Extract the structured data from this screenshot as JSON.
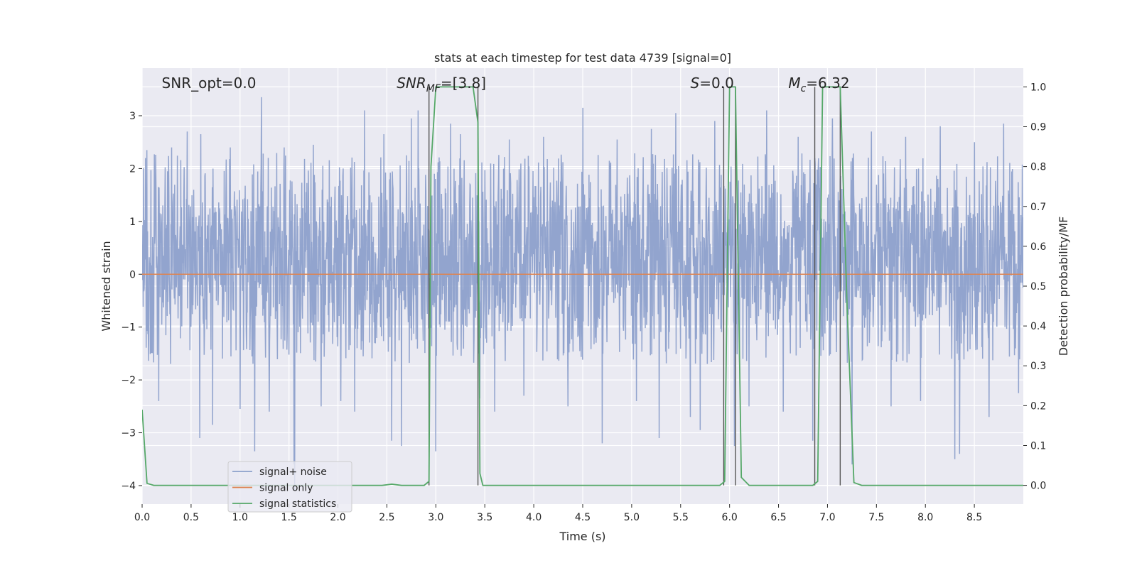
{
  "chart_data": {
    "type": "line",
    "title": "stats at each timestep for test data 4739 [signal=0]",
    "xlabel": "Time (s)",
    "ylabel": "Whitened strain",
    "y2label": "Detection probability/MF",
    "xlim": [
      0,
      9.0
    ],
    "ylim": [
      -4.35,
      3.9
    ],
    "y2lim": [
      -0.047,
      1.047
    ],
    "x_ticks": [
      0.0,
      0.5,
      1.0,
      1.5,
      2.0,
      2.5,
      3.0,
      3.5,
      4.0,
      4.5,
      5.0,
      5.5,
      6.0,
      6.5,
      7.0,
      7.5,
      8.0,
      8.5
    ],
    "y_ticks": [
      -4,
      -3,
      -2,
      -1,
      0,
      1,
      2,
      3
    ],
    "y2_ticks": [
      0.0,
      0.1,
      0.2,
      0.3,
      0.4,
      0.5,
      0.6,
      0.7,
      0.8,
      0.9,
      1.0
    ],
    "grid": true,
    "legend_position": "lower-left",
    "annotations": [
      {
        "id": "snr-opt",
        "text": "SNR_opt=0.0",
        "x": 0.2
      },
      {
        "id": "snr-mf",
        "text": "SNR_MF=[3.8]",
        "x": 2.6
      },
      {
        "id": "s-value",
        "text": "S=0.0",
        "x": 5.6
      },
      {
        "id": "mc-value",
        "text": "M_c=6.32",
        "x": 6.6
      }
    ],
    "vertical_markers": [
      2.93,
      3.43,
      5.94,
      6.06,
      6.87,
      7.13
    ],
    "series": [
      {
        "name": "signal+ noise",
        "color": "#8da0cb",
        "type": "noise",
        "typical_range": [
          -1.7,
          2.3
        ],
        "peaks": [
          {
            "x": 0.05,
            "y": 2.35
          },
          {
            "x": 0.17,
            "y": -2.4
          },
          {
            "x": 0.3,
            "y": 2.4
          },
          {
            "x": 0.46,
            "y": 2.7
          },
          {
            "x": 0.6,
            "y": -2.55
          },
          {
            "x": 0.6,
            "y": 2.65
          },
          {
            "x": 0.59,
            "y": -3.1
          },
          {
            "x": 0.72,
            "y": -2.85
          },
          {
            "x": 0.9,
            "y": 2.4
          },
          {
            "x": 1.0,
            "y": -2.55
          },
          {
            "x": 1.15,
            "y": 3.15
          },
          {
            "x": 1.22,
            "y": 3.35
          },
          {
            "x": 1.15,
            "y": -3.35
          },
          {
            "x": 1.3,
            "y": -2.6
          },
          {
            "x": 1.45,
            "y": 2.4
          },
          {
            "x": 1.55,
            "y": -3.6
          },
          {
            "x": 1.56,
            "y": -4.1
          },
          {
            "x": 1.75,
            "y": 2.45
          },
          {
            "x": 1.83,
            "y": -2.5
          },
          {
            "x": 2.03,
            "y": -2.4
          },
          {
            "x": 2.17,
            "y": -2.6
          },
          {
            "x": 2.27,
            "y": 3.1
          },
          {
            "x": 2.47,
            "y": 2.65
          },
          {
            "x": 2.55,
            "y": -3.15
          },
          {
            "x": 2.65,
            "y": -3.25
          },
          {
            "x": 2.75,
            "y": 2.95
          },
          {
            "x": 2.82,
            "y": 3.1
          },
          {
            "x": 3.0,
            "y": -3.35
          },
          {
            "x": 3.15,
            "y": 2.85
          },
          {
            "x": 3.25,
            "y": 2.65
          },
          {
            "x": 3.45,
            "y": -2.35
          },
          {
            "x": 3.6,
            "y": -2.6
          },
          {
            "x": 3.75,
            "y": 2.55
          },
          {
            "x": 3.9,
            "y": -2.3
          },
          {
            "x": 4.1,
            "y": 2.6
          },
          {
            "x": 4.35,
            "y": -2.5
          },
          {
            "x": 4.5,
            "y": 3.15
          },
          {
            "x": 4.7,
            "y": -3.2
          },
          {
            "x": 4.85,
            "y": 2.55
          },
          {
            "x": 5.05,
            "y": -2.4
          },
          {
            "x": 5.2,
            "y": 2.75
          },
          {
            "x": 5.28,
            "y": -3.1
          },
          {
            "x": 5.45,
            "y": 3.05
          },
          {
            "x": 5.6,
            "y": -2.7
          },
          {
            "x": 5.7,
            "y": -2.95
          },
          {
            "x": 5.85,
            "y": 2.9
          },
          {
            "x": 6.05,
            "y": -3.25
          },
          {
            "x": 6.2,
            "y": -2.5
          },
          {
            "x": 6.38,
            "y": 3.1
          },
          {
            "x": 6.55,
            "y": -2.6
          },
          {
            "x": 6.7,
            "y": 2.6
          },
          {
            "x": 6.85,
            "y": -3.15
          },
          {
            "x": 7.05,
            "y": 2.95
          },
          {
            "x": 7.25,
            "y": -3.6
          },
          {
            "x": 7.45,
            "y": 2.7
          },
          {
            "x": 7.65,
            "y": -2.5
          },
          {
            "x": 7.8,
            "y": 2.6
          },
          {
            "x": 7.95,
            "y": -2.4
          },
          {
            "x": 8.15,
            "y": 2.8
          },
          {
            "x": 8.3,
            "y": -3.5
          },
          {
            "x": 8.35,
            "y": -3.4
          },
          {
            "x": 8.5,
            "y": 2.5
          },
          {
            "x": 8.65,
            "y": -2.7
          },
          {
            "x": 8.8,
            "y": 2.85
          },
          {
            "x": 8.95,
            "y": -2.25
          }
        ]
      },
      {
        "name": "signal only",
        "color": "#dd8452",
        "x": [
          0.0,
          9.0
        ],
        "y": [
          0.0,
          0.0
        ]
      },
      {
        "name": "signal statistics",
        "color": "#55a868",
        "axis": "right",
        "x": [
          0.0,
          0.05,
          0.12,
          2.45,
          2.55,
          2.65,
          2.88,
          2.93,
          2.95,
          3.0,
          3.38,
          3.43,
          3.45,
          3.48,
          5.9,
          5.95,
          6.0,
          6.06,
          6.12,
          6.2,
          6.85,
          6.9,
          6.95,
          7.13,
          7.2,
          7.27,
          7.35,
          9.0
        ],
        "y": [
          0.19,
          0.005,
          0.0,
          0.0,
          0.003,
          0.0,
          0.0,
          0.01,
          0.8,
          1.0,
          1.0,
          0.91,
          0.03,
          0.0,
          0.0,
          0.01,
          1.0,
          1.0,
          0.02,
          0.0,
          0.0,
          0.01,
          1.0,
          1.0,
          0.45,
          0.007,
          0.0,
          0.0
        ]
      }
    ]
  }
}
